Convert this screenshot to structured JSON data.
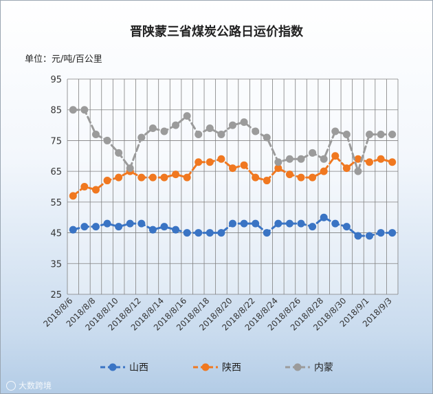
{
  "chart_data": {
    "type": "line",
    "title": "晋陕蒙三省煤炭公路日运价指数",
    "unit_label": "单位：元/吨/百公里",
    "ylim": [
      25,
      95
    ],
    "yticks": [
      25,
      35,
      45,
      55,
      65,
      75,
      85,
      95
    ],
    "grid": true,
    "legend": "bottom",
    "x": [
      "2018/8/6",
      "2018/8/7",
      "2018/8/8",
      "2018/8/9",
      "2018/8/10",
      "2018/8/11",
      "2018/8/12",
      "2018/8/13",
      "2018/8/14",
      "2018/8/15",
      "2018/8/16",
      "2018/8/17",
      "2018/8/18",
      "2018/8/19",
      "2018/8/20",
      "2018/8/21",
      "2018/8/22",
      "2018/8/23",
      "2018/8/24",
      "2018/8/25",
      "2018/8/26",
      "2018/8/27",
      "2018/8/28",
      "2018/8/29",
      "2018/8/30",
      "2018/8/31",
      "2018/9/1",
      "2018/9/2",
      "2018/9/3"
    ],
    "x_tick_labels": [
      "2018/8/6",
      "2018/8/8",
      "2018/8/10",
      "2018/8/12",
      "2018/8/14",
      "2018/8/16",
      "2018/8/18",
      "2018/8/20",
      "2018/8/22",
      "2018/8/24",
      "2018/8/26",
      "2018/8/28",
      "2018/8/30",
      "2018/9/1",
      "2018/9/3"
    ],
    "series": [
      {
        "name": "山西",
        "color": "#3a74c4",
        "values": [
          46,
          47,
          47,
          48,
          47,
          48,
          48,
          46,
          47,
          46,
          45,
          45,
          45,
          45,
          48,
          48,
          48,
          45,
          48,
          48,
          48,
          47,
          50,
          48,
          47,
          44,
          44,
          45,
          45
        ]
      },
      {
        "name": "陕西",
        "color": "#f07820",
        "values": [
          57,
          60,
          59,
          62,
          63,
          65,
          63,
          63,
          63,
          64,
          63,
          68,
          68,
          69,
          66,
          67,
          63,
          62,
          66,
          64,
          63,
          63,
          65,
          70,
          66,
          69,
          68,
          69,
          68
        ]
      },
      {
        "name": "内蒙",
        "color": "#9b9b9b",
        "values": [
          85,
          85,
          77,
          75,
          71,
          66,
          76,
          79,
          78,
          80,
          83,
          77,
          79,
          77,
          80,
          81,
          78,
          76,
          68,
          69,
          69,
          71,
          69,
          78,
          77,
          65,
          77,
          77,
          77
        ]
      }
    ]
  },
  "watermark": "大数跨境"
}
